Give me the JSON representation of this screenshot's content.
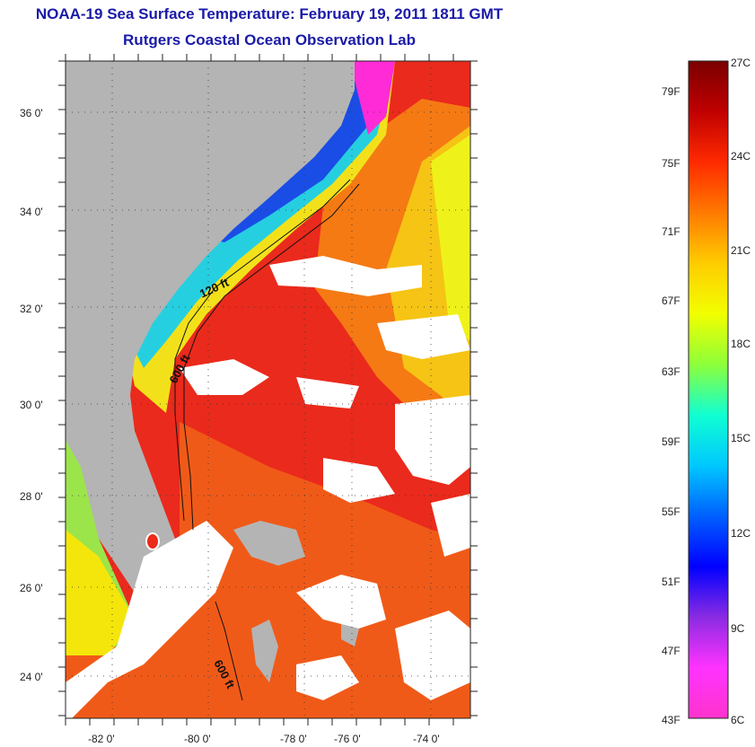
{
  "title": "NOAA-19 Sea Surface Temperature:  February 19, 2011 1811 GMT",
  "subtitle": "Rutgers Coastal Ocean Observation Lab",
  "map": {
    "lat_ticks": [
      "36 0'",
      "34 0'",
      "32 0'",
      "30 0'",
      "28 0'",
      "26 0'",
      "24 0'"
    ],
    "lon_ticks": [
      "-82 0'",
      "-80 0'",
      "-78 0'",
      "-76 0'",
      "-74 0'"
    ],
    "isobath_labels": [
      "120 ft",
      "600 ft",
      "600 ft"
    ],
    "colors": {
      "land": "#b4b4b4",
      "cloud": "#ffffff",
      "warm": "#e8231c",
      "orange": "#f26a12",
      "yellow": "#f4e60a",
      "green": "#9be54a",
      "cyan": "#18c7e8",
      "blue": "#1a47e6",
      "magenta": "#ff2bd6"
    }
  },
  "colorbar": {
    "fahrenheit_labels": [
      "79F",
      "75F",
      "71F",
      "67F",
      "63F",
      "59F",
      "55F",
      "51F",
      "47F",
      "43F"
    ],
    "celsius_labels": [
      "27C",
      "24C",
      "21C",
      "18C",
      "15C",
      "12C",
      "9C",
      "6C"
    ],
    "gradient": [
      "#7a0000",
      "#c00000",
      "#ff2a00",
      "#ff7a00",
      "#ffcc00",
      "#f2ff00",
      "#8dff3a",
      "#10ffd2",
      "#00c8ff",
      "#0060ff",
      "#0000ff",
      "#8a2be2",
      "#ff33ff",
      "#ff33cc"
    ]
  }
}
